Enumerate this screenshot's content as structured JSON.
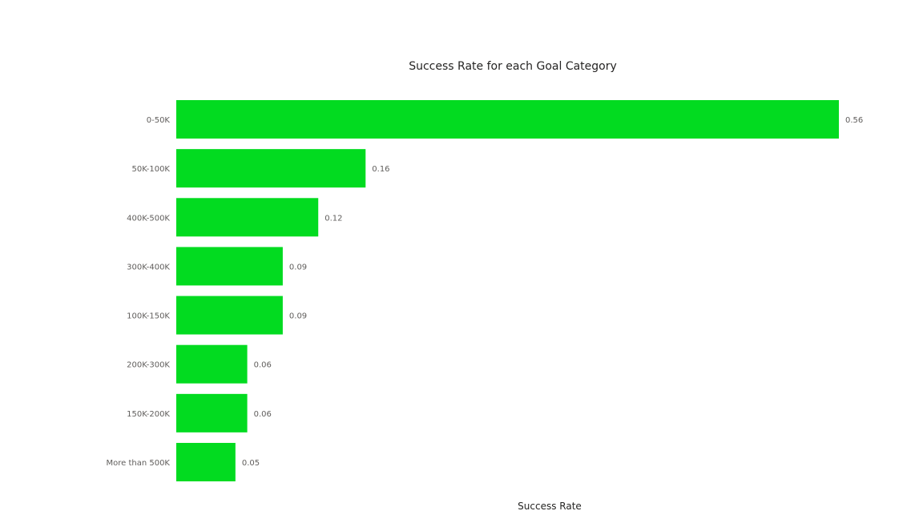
{
  "chart_data": {
    "type": "bar",
    "orientation": "horizontal",
    "title": "Success Rate for each Goal Category",
    "xlabel": "Success Rate",
    "ylabel": "",
    "categories": [
      "0-50K",
      "50K-100K",
      "400K-500K",
      "300K-400K",
      "100K-150K",
      "200K-300K",
      "150K-200K",
      "More than 500K"
    ],
    "values": [
      0.56,
      0.16,
      0.12,
      0.09,
      0.09,
      0.06,
      0.06,
      0.05
    ],
    "data_labels": [
      "0.56",
      "0.16",
      "0.12",
      "0.09",
      "0.09",
      "0.06",
      "0.06",
      "0.05"
    ],
    "xlim": [
      0,
      0.56
    ],
    "bar_color": "#02DB20",
    "grid": false,
    "legend": "none",
    "data_labels_shown": true
  }
}
